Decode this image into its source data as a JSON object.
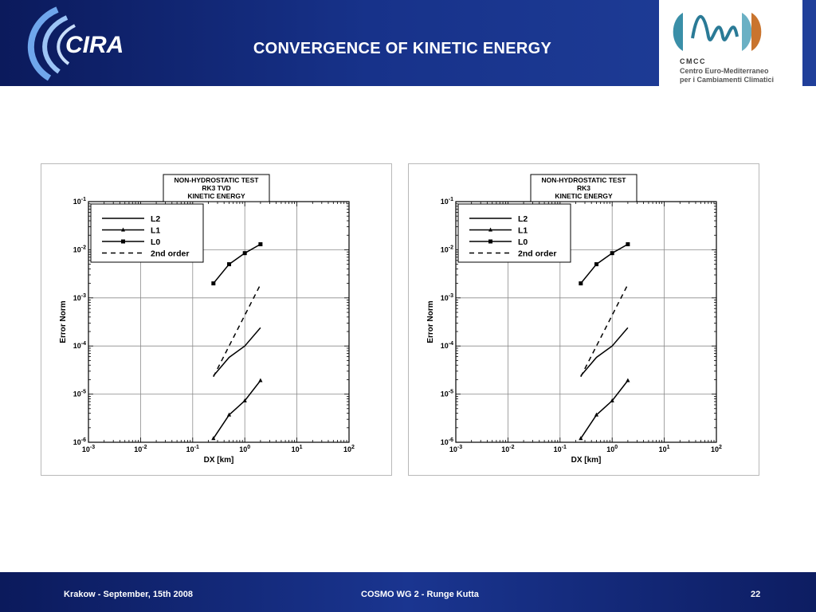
{
  "header": {
    "title": "CONVERGENCE  OF  KINETIC ENERGY",
    "left_logo_text": "CIRA",
    "right_logo": {
      "name": "CMCC",
      "line1": "Centro Euro-Mediterraneo",
      "line2": "per i Cambiamenti Climatici"
    }
  },
  "colors": {
    "header_bg": "#14297a",
    "text": "#ffffff",
    "plot_line": "#000000"
  },
  "chart_data": [
    {
      "type": "line",
      "title_lines": [
        "NON-HYDROSTATIC TEST",
        "RK3 TVD",
        "KINETIC ENERGY"
      ],
      "xlabel": "DX [km]",
      "ylabel": "Error Norm",
      "xscale": "log",
      "yscale": "log",
      "xlim": [
        0.001,
        100
      ],
      "ylim": [
        1e-06,
        0.1
      ],
      "x_ticks": [
        {
          "b": "10",
          "e": "-3"
        },
        {
          "b": "10",
          "e": "-2"
        },
        {
          "b": "10",
          "e": "-1"
        },
        {
          "b": "10",
          "e": "0"
        },
        {
          "b": "10",
          "e": "1"
        },
        {
          "b": "10",
          "e": "2"
        }
      ],
      "y_ticks": [
        {
          "b": "10",
          "e": "-6"
        },
        {
          "b": "10",
          "e": "-5"
        },
        {
          "b": "10",
          "e": "-4"
        },
        {
          "b": "10",
          "e": "-3"
        },
        {
          "b": "10",
          "e": "-2"
        },
        {
          "b": "10",
          "e": "-1"
        }
      ],
      "grid": true,
      "legend_position": "top-left",
      "series": [
        {
          "name": "L2",
          "marker": "none",
          "dash": false,
          "x": [
            0.25,
            0.5,
            1.0,
            2.0
          ],
          "y": [
            2.4e-05,
            5.8e-05,
            0.0001,
            0.00024
          ]
        },
        {
          "name": "L1",
          "marker": "triangle",
          "dash": false,
          "x": [
            0.25,
            0.5,
            1.0,
            2.0
          ],
          "y": [
            1.2e-06,
            3.7e-06,
            7.3e-06,
            1.92e-05
          ]
        },
        {
          "name": "L0",
          "marker": "square",
          "dash": false,
          "x": [
            0.25,
            0.5,
            1.0,
            2.0
          ],
          "y": [
            0.002,
            0.005,
            0.0085,
            0.013
          ]
        },
        {
          "name": "2nd order",
          "marker": "none",
          "dash": true,
          "x": [
            0.25,
            2.0
          ],
          "y": [
            2.3e-05,
            0.0019
          ]
        }
      ]
    },
    {
      "type": "line",
      "title_lines": [
        "NON-HYDROSTATIC TEST",
        "RK3",
        "KINETIC ENERGY"
      ],
      "xlabel": "DX [km]",
      "ylabel": "Error Norm",
      "xscale": "log",
      "yscale": "log",
      "xlim": [
        0.001,
        100
      ],
      "ylim": [
        1e-06,
        0.1
      ],
      "x_ticks": [
        {
          "b": "10",
          "e": "-3"
        },
        {
          "b": "10",
          "e": "-2"
        },
        {
          "b": "10",
          "e": "-1"
        },
        {
          "b": "10",
          "e": "0"
        },
        {
          "b": "10",
          "e": "1"
        },
        {
          "b": "10",
          "e": "2"
        }
      ],
      "y_ticks": [
        {
          "b": "10",
          "e": "-6"
        },
        {
          "b": "10",
          "e": "-5"
        },
        {
          "b": "10",
          "e": "-4"
        },
        {
          "b": "10",
          "e": "-3"
        },
        {
          "b": "10",
          "e": "-2"
        },
        {
          "b": "10",
          "e": "-1"
        }
      ],
      "grid": true,
      "legend_position": "top-left",
      "series": [
        {
          "name": "L2",
          "marker": "none",
          "dash": false,
          "x": [
            0.25,
            0.5,
            1.0,
            2.0
          ],
          "y": [
            2.4e-05,
            5.8e-05,
            0.0001,
            0.00024
          ]
        },
        {
          "name": "L1",
          "marker": "triangle",
          "dash": false,
          "x": [
            0.25,
            0.5,
            1.0,
            2.0
          ],
          "y": [
            1.2e-06,
            3.7e-06,
            7.3e-06,
            1.92e-05
          ]
        },
        {
          "name": "L0",
          "marker": "square",
          "dash": false,
          "x": [
            0.25,
            0.5,
            1.0,
            2.0
          ],
          "y": [
            0.002,
            0.005,
            0.0085,
            0.013
          ]
        },
        {
          "name": "2nd order",
          "marker": "none",
          "dash": true,
          "x": [
            0.25,
            2.0
          ],
          "y": [
            2.3e-05,
            0.0019
          ]
        }
      ]
    }
  ],
  "footer": {
    "left": "Krakow - September, 15th 2008",
    "center": "COSMO WG 2 - Runge Kutta",
    "page": "22"
  }
}
